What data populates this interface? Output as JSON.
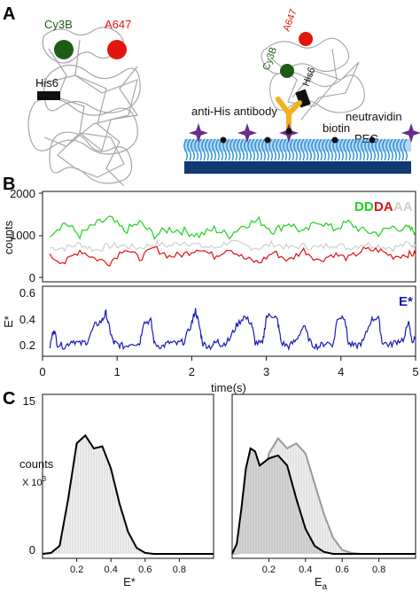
{
  "panel_a": {
    "label": "A",
    "left": {
      "cy3b": "Cy3B",
      "a647": "A647",
      "his6": "His6"
    },
    "right": {
      "a647": "A647",
      "cy3b": "Cy3B",
      "his6": "His6",
      "anti_his": "anti-His antibody",
      "biotin": "biotin",
      "peg": "PEG",
      "neutravidin": "neutravidin"
    },
    "colors": {
      "cy3b": "#1e5c16",
      "a647": "#e3150f",
      "antibody": "#f2b01e",
      "star": "#6a2c8e",
      "peg": "#2b8fd6",
      "slide": "#123a72",
      "protein": "#a6a6a6"
    }
  },
  "panel_b": {
    "label": "B",
    "top": {
      "ylabel": "counts",
      "yticks": [
        "2000",
        "1000",
        "0"
      ],
      "legend": [
        "DD",
        "DA",
        "AA"
      ],
      "legend_colors": [
        "#20d020",
        "#e01010",
        "#cfcfcf"
      ]
    },
    "bottom": {
      "ylabel": "E*",
      "yticks": [
        "0.6",
        "0.4",
        "0.2"
      ],
      "legend": "E*",
      "legend_color": "#1a1ab8"
    },
    "xticks": [
      "0",
      "1",
      "2",
      "3",
      "4",
      "5"
    ],
    "xlabel": "time(s)"
  },
  "panel_c": {
    "label": "C",
    "ylabel": "counts",
    "yunit": "X 10",
    "yunit_exp": "3",
    "yticks": [
      "15",
      "0"
    ],
    "xticks": [
      "0.2",
      "0.4",
      "0.6",
      "0.8"
    ],
    "left_xlabel": "E*",
    "right_xlabel": "E",
    "right_xlabel_sub": "a"
  },
  "chart_data": [
    {
      "type": "line",
      "title": "",
      "xlabel": "time(s)",
      "ylabel": "counts",
      "xlim": [
        0,
        5
      ],
      "ylim": [
        0,
        2000
      ],
      "series": [
        {
          "name": "DD",
          "color": "#20d020",
          "points": [
            [
              0.1,
              1050
            ],
            [
              0.3,
              1300
            ],
            [
              0.5,
              1000
            ],
            [
              0.7,
              1250
            ],
            [
              0.9,
              1400
            ],
            [
              1.1,
              1100
            ],
            [
              1.3,
              1300
            ],
            [
              1.5,
              1000
            ],
            [
              1.7,
              1150
            ],
            [
              1.9,
              1100
            ],
            [
              2.1,
              1000
            ],
            [
              2.3,
              1150
            ],
            [
              2.5,
              1000
            ],
            [
              2.7,
              1250
            ],
            [
              2.9,
              1350
            ],
            [
              3.1,
              1100
            ],
            [
              3.3,
              1300
            ],
            [
              3.5,
              1050
            ],
            [
              3.7,
              1350
            ],
            [
              3.9,
              1150
            ],
            [
              4.1,
              1300
            ],
            [
              4.3,
              1100
            ],
            [
              4.5,
              1050
            ],
            [
              4.7,
              1200
            ],
            [
              4.9,
              1150
            ],
            [
              5.0,
              1100
            ]
          ]
        },
        {
          "name": "DA",
          "color": "#e01010",
          "points": [
            [
              0.1,
              500
            ],
            [
              0.3,
              350
            ],
            [
              0.5,
              650
            ],
            [
              0.7,
              450
            ],
            [
              0.9,
              350
            ],
            [
              1.1,
              700
            ],
            [
              1.3,
              450
            ],
            [
              1.5,
              700
            ],
            [
              1.7,
              500
            ],
            [
              1.9,
              550
            ],
            [
              2.1,
              700
            ],
            [
              2.3,
              500
            ],
            [
              2.5,
              700
            ],
            [
              2.7,
              450
            ],
            [
              2.9,
              350
            ],
            [
              3.1,
              600
            ],
            [
              3.3,
              400
            ],
            [
              3.5,
              650
            ],
            [
              3.7,
              400
            ],
            [
              3.9,
              550
            ],
            [
              4.1,
              450
            ],
            [
              4.3,
              650
            ],
            [
              4.5,
              650
            ],
            [
              4.7,
              500
            ],
            [
              4.9,
              550
            ],
            [
              5.0,
              550
            ]
          ]
        },
        {
          "name": "AA",
          "color": "#cfcfcf",
          "points": [
            [
              0.1,
              700
            ],
            [
              0.3,
              700
            ],
            [
              0.5,
              800
            ],
            [
              0.7,
              650
            ],
            [
              0.9,
              750
            ],
            [
              1.1,
              750
            ],
            [
              1.3,
              700
            ],
            [
              1.5,
              800
            ],
            [
              1.7,
              750
            ],
            [
              1.9,
              850
            ],
            [
              2.1,
              750
            ],
            [
              2.3,
              700
            ],
            [
              2.5,
              850
            ],
            [
              2.7,
              750
            ],
            [
              2.9,
              700
            ],
            [
              3.1,
              800
            ],
            [
              3.3,
              700
            ],
            [
              3.5,
              750
            ],
            [
              3.7,
              700
            ],
            [
              3.9,
              800
            ],
            [
              4.1,
              700
            ],
            [
              4.3,
              800
            ],
            [
              4.5,
              750
            ],
            [
              4.7,
              700
            ],
            [
              4.9,
              800
            ],
            [
              5.0,
              750
            ]
          ]
        }
      ]
    },
    {
      "type": "line",
      "title": "",
      "xlabel": "time(s)",
      "ylabel": "E*",
      "xlim": [
        0,
        5
      ],
      "ylim": [
        0.1,
        0.6
      ],
      "series": [
        {
          "name": "E*",
          "color": "#1a1ab8",
          "points": [
            [
              0.1,
              0.22
            ],
            [
              0.15,
              0.36
            ],
            [
              0.2,
              0.24
            ],
            [
              0.3,
              0.22
            ],
            [
              0.4,
              0.27
            ],
            [
              0.5,
              0.24
            ],
            [
              0.6,
              0.26
            ],
            [
              0.7,
              0.38
            ],
            [
              0.8,
              0.42
            ],
            [
              0.85,
              0.48
            ],
            [
              0.9,
              0.35
            ],
            [
              0.95,
              0.25
            ],
            [
              1.0,
              0.24
            ],
            [
              1.1,
              0.22
            ],
            [
              1.2,
              0.25
            ],
            [
              1.3,
              0.24
            ],
            [
              1.35,
              0.4
            ],
            [
              1.45,
              0.42
            ],
            [
              1.5,
              0.24
            ],
            [
              1.6,
              0.22
            ],
            [
              1.7,
              0.25
            ],
            [
              1.8,
              0.24
            ],
            [
              1.9,
              0.26
            ],
            [
              2.0,
              0.4
            ],
            [
              2.05,
              0.5
            ],
            [
              2.1,
              0.38
            ],
            [
              2.15,
              0.24
            ],
            [
              2.25,
              0.22
            ],
            [
              2.35,
              0.26
            ],
            [
              2.4,
              0.23
            ],
            [
              2.5,
              0.27
            ],
            [
              2.6,
              0.38
            ],
            [
              2.7,
              0.45
            ],
            [
              2.8,
              0.4
            ],
            [
              2.85,
              0.25
            ],
            [
              2.95,
              0.24
            ],
            [
              3.0,
              0.45
            ],
            [
              3.1,
              0.46
            ],
            [
              3.15,
              0.42
            ],
            [
              3.2,
              0.25
            ],
            [
              3.3,
              0.22
            ],
            [
              3.4,
              0.27
            ],
            [
              3.5,
              0.38
            ],
            [
              3.6,
              0.24
            ],
            [
              3.7,
              0.22
            ],
            [
              3.8,
              0.25
            ],
            [
              3.9,
              0.24
            ],
            [
              3.95,
              0.44
            ],
            [
              4.05,
              0.45
            ],
            [
              4.1,
              0.24
            ],
            [
              4.2,
              0.22
            ],
            [
              4.3,
              0.26
            ],
            [
              4.4,
              0.42
            ],
            [
              4.5,
              0.45
            ],
            [
              4.55,
              0.26
            ],
            [
              4.65,
              0.23
            ],
            [
              4.75,
              0.26
            ],
            [
              4.85,
              0.28
            ],
            [
              4.9,
              0.42
            ],
            [
              4.95,
              0.26
            ],
            [
              5.0,
              0.28
            ]
          ]
        }
      ]
    },
    {
      "type": "area",
      "title": "",
      "xlabel": "E*",
      "ylabel": "counts",
      "xlim": [
        0,
        1.0
      ],
      "ylim": [
        0,
        15
      ],
      "series": [
        {
          "name": "",
          "color": "#000000",
          "x": [
            0.0,
            0.05,
            0.1,
            0.15,
            0.2,
            0.25,
            0.3,
            0.35,
            0.4,
            0.45,
            0.5,
            0.55,
            0.6,
            0.65,
            0.7,
            0.75,
            0.8,
            0.85,
            0.9,
            0.95,
            1.0
          ],
          "y": [
            0,
            0.1,
            0.8,
            5.5,
            11.0,
            11.8,
            10.5,
            10.7,
            8.5,
            5.0,
            2.2,
            0.6,
            0.1,
            0,
            0,
            0,
            0,
            0,
            0,
            0,
            0
          ]
        }
      ]
    },
    {
      "type": "area",
      "title": "",
      "xlabel": "Ea",
      "ylabel": "counts",
      "xlim": [
        0,
        1.0
      ],
      "ylim": [
        0,
        15
      ],
      "series": [
        {
          "name": "",
          "color": "#000000",
          "x": [
            0.0,
            0.025,
            0.05,
            0.075,
            0.1,
            0.125,
            0.15,
            0.2,
            0.25,
            0.3,
            0.35,
            0.4,
            0.45,
            0.5,
            0.55,
            0.6,
            0.65,
            0.7,
            0.8,
            0.9,
            1.0
          ],
          "y": [
            0,
            1.0,
            4.5,
            8.5,
            10.5,
            10.2,
            8.8,
            9.5,
            9.8,
            8.8,
            5.5,
            2.5,
            0.8,
            0.2,
            0,
            0,
            0,
            0,
            0,
            0,
            0
          ]
        },
        {
          "name": "",
          "color": "#9a9a9a",
          "x": [
            0.0,
            0.05,
            0.1,
            0.15,
            0.2,
            0.25,
            0.3,
            0.35,
            0.4,
            0.45,
            0.5,
            0.55,
            0.6,
            0.65,
            0.7,
            0.8,
            0.9,
            1.0
          ],
          "y": [
            0,
            0.1,
            0.6,
            3.5,
            10.0,
            11.5,
            10.5,
            11.0,
            10.0,
            7.0,
            4.0,
            1.6,
            0.4,
            0.1,
            0,
            0,
            0,
            0
          ]
        }
      ]
    }
  ]
}
